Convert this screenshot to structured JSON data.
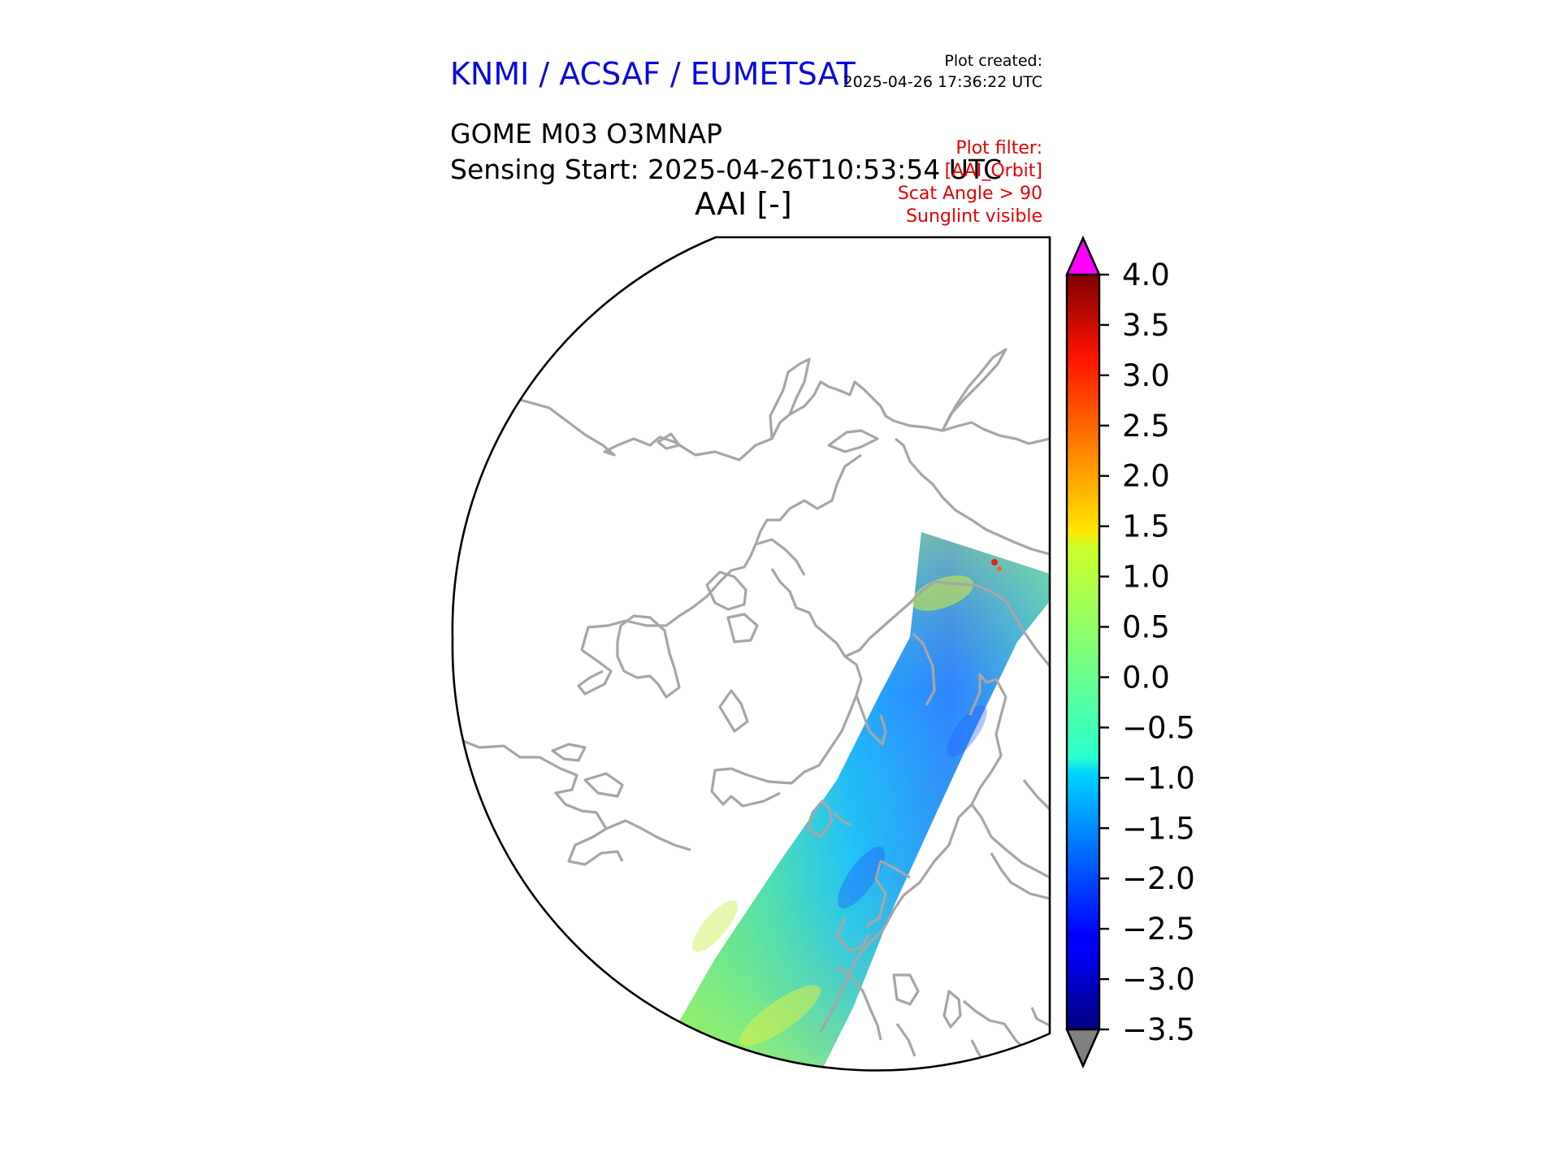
{
  "header": {
    "agency": "KNMI / ACSAF / EUMETSAT",
    "created_label": "Plot created:",
    "created_time": "2025-04-26 17:36:22 UTC",
    "product": "GOME M03 O3MNAP",
    "sensing_start": "Sensing Start: 2025-04-26T10:53:54 UTC",
    "panel_title": "AAI [-]",
    "filter_label": "Plot filter:",
    "filters": [
      "[AAI_Orbit]",
      "Scat Angle > 90",
      "Sunglint visible"
    ]
  },
  "colors": {
    "agency": "#0a0adc",
    "filter_text": "#e60000",
    "coastline": "#a6a6a6",
    "over_range": "#ff00ff",
    "under_range": "#808080"
  },
  "colorbar": {
    "vmin": -3.5,
    "vmax": 4.0,
    "ticks": [
      "4.0",
      "3.5",
      "3.0",
      "2.5",
      "2.0",
      "1.5",
      "1.0",
      "0.5",
      "0.0",
      "−0.5",
      "−1.0",
      "−1.5",
      "−2.0",
      "−2.5",
      "−3.0",
      "−3.5"
    ],
    "colormap": "jet",
    "extend": "both"
  }
}
